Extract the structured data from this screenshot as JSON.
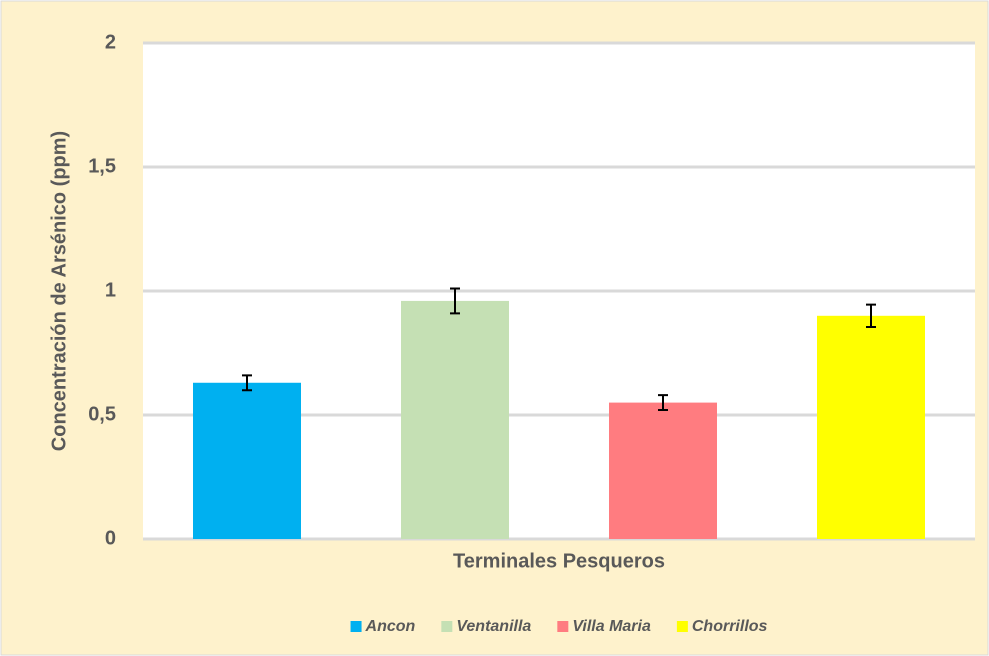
{
  "chart_data": {
    "type": "bar",
    "xlabel": "Terminales Pesqueros",
    "ylabel": "Concentración de Arsénico (ppm)",
    "series": [
      {
        "name": "Ancon",
        "color": "#00b0f0",
        "values": [
          0.63
        ],
        "errors": [
          0.03
        ]
      },
      {
        "name": "Ventanilla",
        "color": "#c5e0b4",
        "values": [
          0.96
        ],
        "errors": [
          0.05
        ]
      },
      {
        "name": "Villa Maria",
        "color": "#ff7c80",
        "values": [
          0.55
        ],
        "errors": [
          0.03
        ]
      },
      {
        "name": "Chorrillos",
        "color": "#ffff00",
        "values": [
          0.9
        ],
        "errors": [
          0.045
        ]
      }
    ],
    "ylim": [
      0,
      2
    ],
    "yticks": [
      0,
      {
        "value": 0.5,
        "label": "0,5"
      },
      1,
      {
        "value": 1.5,
        "label": "1,5"
      },
      2
    ],
    "grid": true,
    "legend": "bottom"
  }
}
